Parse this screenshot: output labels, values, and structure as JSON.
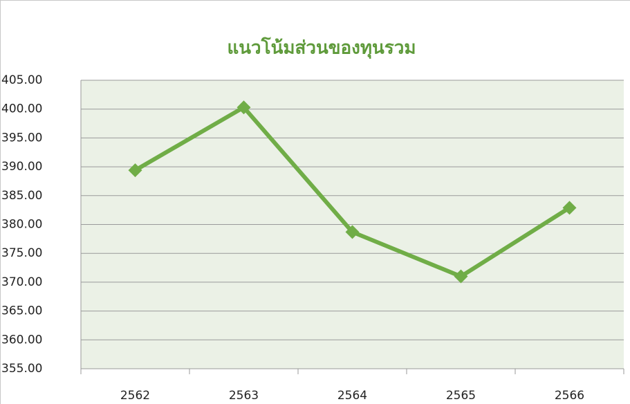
{
  "chart_data": {
    "type": "line",
    "title": "แนวโน้มส่วนของทุนรวม",
    "categories": [
      "2562",
      "2563",
      "2564",
      "2565",
      "2566"
    ],
    "values": [
      389.4,
      400.3,
      378.7,
      371.0,
      382.9
    ],
    "color": "#70ad47",
    "ylim": [
      355,
      405
    ],
    "yticks": [
      {
        "value": 355,
        "label": "355.00"
      },
      {
        "value": 360,
        "label": "360.00"
      },
      {
        "value": 365,
        "label": "365.00"
      },
      {
        "value": 370,
        "label": "370.00"
      },
      {
        "value": 375,
        "label": "375.00"
      },
      {
        "value": 380,
        "label": "380.00"
      },
      {
        "value": 385,
        "label": "385.00"
      },
      {
        "value": 390,
        "label": "390.00"
      },
      {
        "value": 395,
        "label": "395.00"
      },
      {
        "value": 400,
        "label": "400.00"
      },
      {
        "value": 405,
        "label": "405.00"
      }
    ],
    "grid": true
  }
}
